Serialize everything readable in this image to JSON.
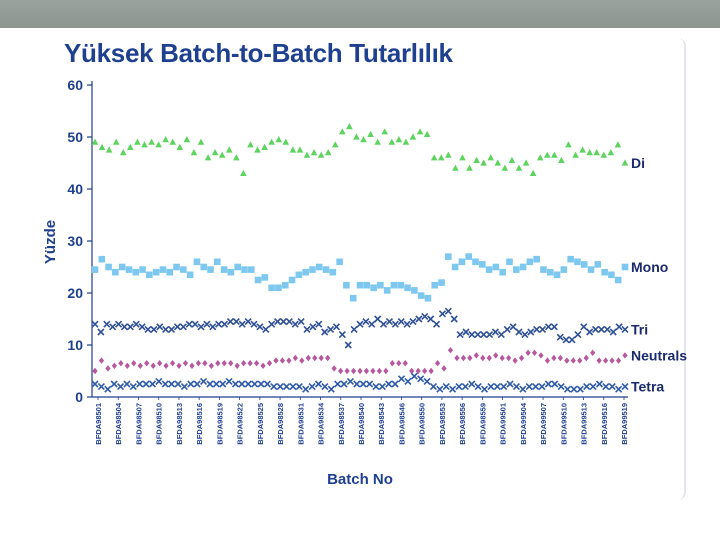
{
  "slide": {
    "title": "Yüksek Batch-to-Batch Tutarlılık"
  },
  "chart_data": {
    "type": "scatter",
    "title": "Yüksek Batch-to-Batch Tutarlılık",
    "xlabel": "Batch No",
    "ylabel": "Yüzde",
    "ylim": [
      0,
      60
    ],
    "yticks": [
      0,
      10,
      20,
      30,
      40,
      50,
      60
    ],
    "grid": false,
    "legend": "series labels at right end of each series",
    "colors": {
      "Di": "#5fd35f",
      "Mono": "#7ec8f0",
      "Tri": "#2f4f96",
      "Neutrals": "#b8589e",
      "Tetra": "#2f5aa8",
      "axis_text": "#1f3f8f"
    },
    "x_tick_labels": [
      "BFDA98501",
      "BFDA98504",
      "BFDA98507",
      "BFDA98510",
      "BFDA98513",
      "BFDA98516",
      "BFDA98519",
      "BFDA98522",
      "BFDA98525",
      "BFDA98528",
      "BFDA98531",
      "BFDA98534",
      "BFDA98537",
      "BFDA98540",
      "BFDA98543",
      "BFDA98546",
      "BFDA98550",
      "BFDA98553",
      "BFDA98556",
      "BFDA98559",
      "BFDA99501",
      "BFDA99504",
      "BFDA99507",
      "BFDA99510",
      "BFDA99513",
      "BFDA99516",
      "BFDA99519"
    ],
    "series": [
      {
        "name": "Di",
        "marker": "triangle",
        "values": [
          49,
          48,
          47.5,
          49,
          47,
          48,
          49,
          48.5,
          49,
          48.5,
          49.5,
          49,
          48,
          49.5,
          47,
          49,
          46,
          47,
          46.5,
          47.5,
          46,
          43,
          48.5,
          47.5,
          48,
          49,
          49.5,
          49,
          47.5,
          47.5,
          46.5,
          47,
          46.5,
          47,
          48.5,
          51,
          52,
          50,
          49.5,
          50.5,
          49,
          51,
          49,
          49.5,
          49,
          50,
          51,
          50.5,
          46,
          46,
          46.5,
          44,
          46,
          44,
          45.5,
          45,
          46,
          45,
          44,
          45.5,
          44,
          45,
          43,
          46,
          46.5,
          46.5,
          45.5,
          48.5,
          46.5,
          47.5,
          47,
          47,
          46.5,
          47,
          48.5,
          45
        ]
      },
      {
        "name": "Mono",
        "marker": "square",
        "values": [
          24.5,
          26.5,
          25,
          24,
          25,
          24.5,
          24,
          24.5,
          23.5,
          24,
          24.5,
          24,
          25,
          24.5,
          23.5,
          26,
          25,
          24.5,
          26,
          24.5,
          24,
          25,
          24.5,
          24.5,
          22.5,
          23,
          21,
          21,
          21.5,
          22.5,
          23.5,
          24,
          24.5,
          25,
          24.5,
          24,
          26,
          21.5,
          19,
          21.5,
          21.5,
          21,
          21.5,
          20.5,
          21.5,
          21.5,
          21,
          20.5,
          19.5,
          19,
          21.5,
          22,
          27,
          25,
          26,
          27,
          26,
          25.5,
          24.5,
          25,
          24,
          26,
          24.5,
          25,
          26,
          26.5,
          24.5,
          24,
          23.5,
          24.5,
          26.5,
          26,
          25.5,
          24.5,
          25.5,
          24,
          23.5,
          22.5,
          25
        ]
      },
      {
        "name": "Tri",
        "marker": "x",
        "values": [
          14,
          12.5,
          14,
          13.5,
          14,
          13.5,
          13.5,
          14,
          13.5,
          13,
          13,
          13.5,
          13,
          13,
          13.5,
          13.5,
          14,
          14,
          13.5,
          14,
          13.5,
          14,
          14,
          14.5,
          14.5,
          14,
          14.5,
          14,
          13.5,
          13,
          14,
          14.5,
          14.5,
          14.5,
          14,
          14.5,
          13,
          13.5,
          14,
          12.5,
          13,
          13.5,
          12,
          10,
          13,
          14,
          14.5,
          14,
          15,
          14,
          14.5,
          14,
          14.5,
          14,
          14.5,
          15,
          15.5,
          15,
          14,
          16,
          16.5,
          15,
          12,
          12.5,
          12,
          12,
          12,
          12,
          12.5,
          12,
          13,
          13.5,
          12.5,
          12,
          12.5,
          13,
          13,
          13.5,
          13.5,
          11.5,
          11,
          11,
          12,
          13.5,
          12.5,
          13,
          13,
          13,
          12.5,
          13.5,
          13
        ]
      },
      {
        "name": "Neutrals",
        "marker": "diamond",
        "values": [
          5,
          7,
          5.5,
          6,
          6.5,
          6,
          6.5,
          6,
          6.5,
          6,
          6.5,
          6,
          6.5,
          6,
          6.5,
          6,
          6.5,
          6.5,
          6,
          6.5,
          6.5,
          6.5,
          6,
          6.5,
          6.5,
          6.5,
          6,
          6.5,
          7,
          7,
          7,
          7.5,
          7,
          7.5,
          7.5,
          7.5,
          7.5,
          5.5,
          5,
          5,
          5,
          5,
          5,
          5,
          5,
          5,
          6.5,
          6.5,
          6.5,
          5,
          5,
          5,
          5,
          6.5,
          5.5,
          9,
          7.5,
          7.5,
          7.5,
          8,
          7.5,
          7.5,
          8,
          7.5,
          7.5,
          7,
          7.5,
          8.5,
          8.5,
          8,
          7,
          7.5,
          7.5,
          7,
          7,
          7,
          7.5,
          8.5,
          7,
          7,
          7,
          7,
          8
        ]
      },
      {
        "name": "Tetra",
        "marker": "x",
        "values": [
          2.5,
          2,
          1.5,
          2.5,
          2,
          2.5,
          2,
          2.5,
          2.5,
          2.5,
          3,
          2.5,
          2.5,
          2.5,
          2,
          2.5,
          2.5,
          3,
          2.5,
          2.5,
          2.5,
          3,
          2.5,
          2.5,
          2.5,
          2.5,
          2.5,
          2.5,
          2,
          2,
          2,
          2,
          2,
          1.5,
          2,
          2.5,
          2,
          1.5,
          2.5,
          2.5,
          3,
          2.5,
          2.5,
          2.5,
          2,
          2,
          2.5,
          2.5,
          3.5,
          3,
          4,
          3.5,
          3,
          2,
          1.5,
          2,
          1.5,
          2,
          2,
          2.5,
          2,
          1.5,
          2,
          2,
          2,
          2.5,
          2,
          1.5,
          2,
          2,
          2,
          2.5,
          2.5,
          2,
          1.5,
          1.5,
          1.5,
          2,
          2,
          2.5,
          2,
          2,
          1.5,
          2
        ]
      }
    ]
  }
}
